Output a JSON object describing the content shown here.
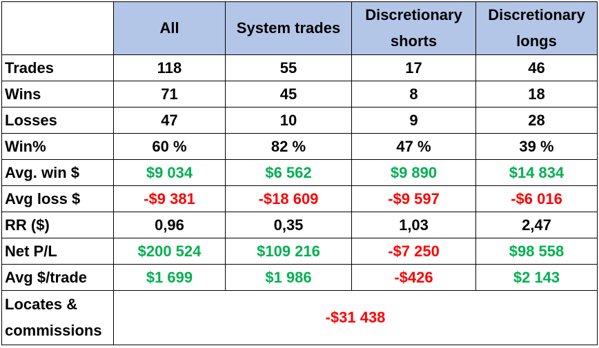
{
  "colors": {
    "header_bg": "#b4c6e7",
    "positive": "#00b050",
    "negative": "#ff0000",
    "neutral": "#000000"
  },
  "columns": [
    "All",
    "System trades",
    "Discretionary shorts",
    "Discretionary longs"
  ],
  "rows": [
    {
      "label": "Trades",
      "values": [
        "118",
        "55",
        "17",
        "46"
      ],
      "colors": [
        "neutral",
        "neutral",
        "neutral",
        "neutral"
      ]
    },
    {
      "label": "Wins",
      "values": [
        "71",
        "45",
        "8",
        "18"
      ],
      "colors": [
        "neutral",
        "neutral",
        "neutral",
        "neutral"
      ]
    },
    {
      "label": "Losses",
      "values": [
        "47",
        "10",
        "9",
        "28"
      ],
      "colors": [
        "neutral",
        "neutral",
        "neutral",
        "neutral"
      ]
    },
    {
      "label": "Win%",
      "values": [
        "60 %",
        "82 %",
        "47 %",
        "39 %"
      ],
      "colors": [
        "neutral",
        "neutral",
        "neutral",
        "neutral"
      ]
    },
    {
      "label": "Avg. win $",
      "values": [
        "$9 034",
        "$6 562",
        "$9 890",
        "$14 834"
      ],
      "colors": [
        "positive",
        "positive",
        "positive",
        "positive"
      ]
    },
    {
      "label": "Avg loss $",
      "values": [
        "-$9 381",
        "-$18 609",
        "-$9 597",
        "-$6 016"
      ],
      "colors": [
        "negative",
        "negative",
        "negative",
        "negative"
      ]
    },
    {
      "label": "RR ($)",
      "values": [
        "0,96",
        "0,35",
        "1,03",
        "2,47"
      ],
      "colors": [
        "neutral",
        "neutral",
        "neutral",
        "neutral"
      ]
    },
    {
      "label": "Net P/L",
      "values": [
        "$200 524",
        "$109 216",
        "-$7 250",
        "$98 558"
      ],
      "colors": [
        "positive",
        "positive",
        "negative",
        "positive"
      ]
    },
    {
      "label": "Avg $/trade",
      "values": [
        "$1 699",
        "$1 986",
        "-$426",
        "$2 143"
      ],
      "colors": [
        "positive",
        "positive",
        "negative",
        "positive"
      ]
    }
  ],
  "footer": {
    "label_line1": "Locates &",
    "label_line2": "commissions",
    "value": "-$31 438",
    "color": "negative"
  },
  "chart_data": {
    "type": "table",
    "columns": [
      "All",
      "System trades",
      "Discretionary shorts",
      "Discretionary longs"
    ],
    "rows": [
      {
        "label": "Trades",
        "values": [
          118,
          55,
          17,
          46
        ]
      },
      {
        "label": "Wins",
        "values": [
          71,
          45,
          8,
          18
        ]
      },
      {
        "label": "Losses",
        "values": [
          47,
          10,
          9,
          28
        ]
      },
      {
        "label": "Win%",
        "values": [
          60,
          82,
          47,
          39
        ]
      },
      {
        "label": "Avg. win $",
        "values": [
          9034,
          6562,
          9890,
          14834
        ]
      },
      {
        "label": "Avg loss $",
        "values": [
          -9381,
          -18609,
          -9597,
          -6016
        ]
      },
      {
        "label": "RR ($)",
        "values": [
          0.96,
          0.35,
          1.03,
          2.47
        ]
      },
      {
        "label": "Net P/L",
        "values": [
          200524,
          109216,
          -7250,
          98558
        ]
      },
      {
        "label": "Avg $/trade",
        "values": [
          1699,
          1986,
          -426,
          2143
        ]
      },
      {
        "label": "Locates & commissions",
        "values": [
          -31438
        ]
      }
    ]
  }
}
